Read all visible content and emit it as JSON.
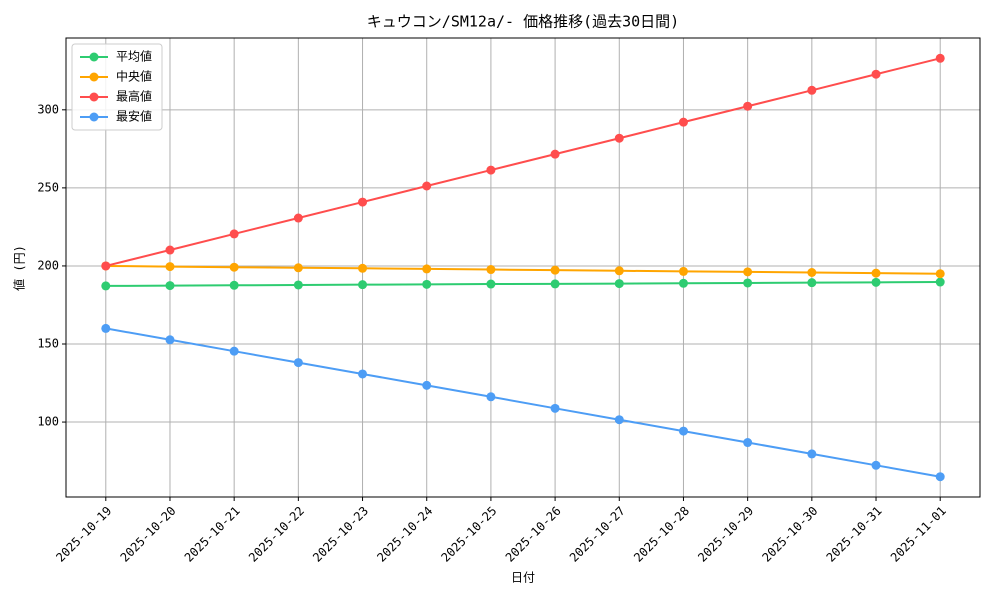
{
  "chart_data": {
    "type": "line",
    "title": "キュウコン/SM12a/- 価格推移(過去30日間)",
    "x_label": "日付",
    "y_label": "値 (円)",
    "categories": [
      "2025-10-19",
      "2025-10-20",
      "2025-10-21",
      "2025-10-22",
      "2025-10-23",
      "2025-10-24",
      "2025-10-25",
      "2025-10-26",
      "2025-10-27",
      "2025-10-28",
      "2025-10-29",
      "2025-10-30",
      "2025-10-31",
      "2025-11-01"
    ],
    "series": [
      {
        "name": "平均値",
        "color": "#2ecc71",
        "values": [
          187.2,
          187.4,
          187.6,
          187.8,
          188.0,
          188.2,
          188.4,
          188.5,
          188.7,
          188.9,
          189.1,
          189.3,
          189.5,
          189.7
        ]
      },
      {
        "name": "中央値",
        "color": "#ffa500",
        "values": [
          200,
          199.6,
          199.2,
          198.8,
          198.5,
          198.1,
          197.7,
          197.3,
          196.9,
          196.5,
          196.2,
          195.8,
          195.4,
          195.0
        ]
      },
      {
        "name": "最高値",
        "color": "#ff4d4d",
        "values": [
          200,
          210.2,
          220.5,
          230.7,
          240.9,
          251.2,
          261.4,
          271.6,
          281.8,
          292.1,
          302.3,
          312.5,
          322.8,
          333
        ]
      },
      {
        "name": "最安値",
        "color": "#4d9df5",
        "values": [
          160,
          152.7,
          145.4,
          138.1,
          130.8,
          123.5,
          116.2,
          108.8,
          101.5,
          94.2,
          86.9,
          79.6,
          72.3,
          65
        ]
      }
    ],
    "ylim": [
      52,
      346
    ],
    "yticks": [
      100,
      150,
      200,
      250,
      300
    ],
    "grid": true,
    "legend": "upper left"
  }
}
